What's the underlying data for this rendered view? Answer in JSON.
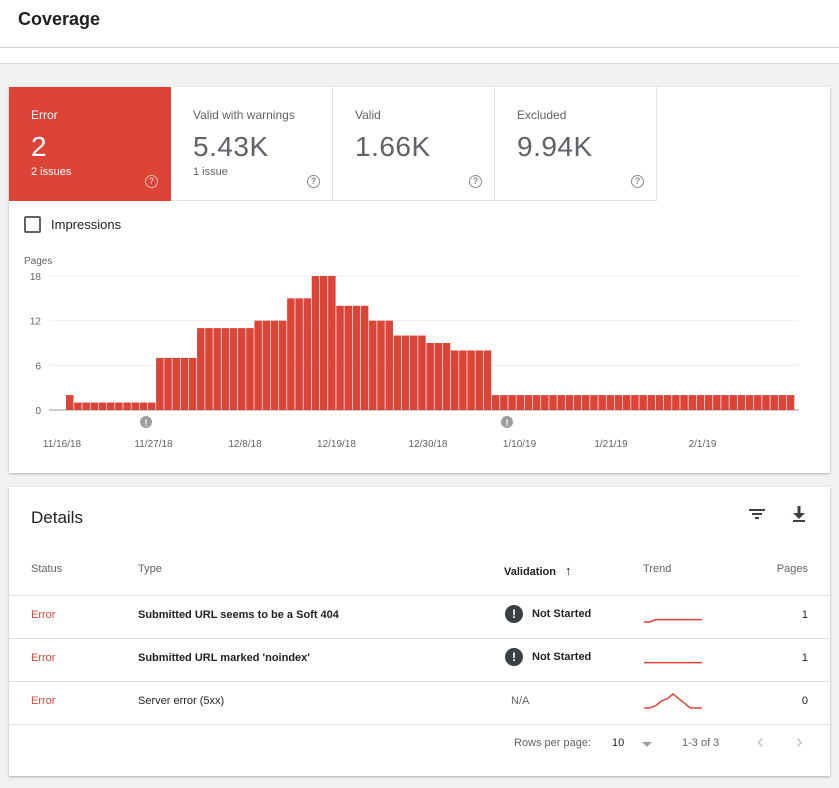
{
  "page": {
    "title": "Coverage"
  },
  "tiles": [
    {
      "label": "Error",
      "value": "2",
      "sub": "2 issues",
      "active": true
    },
    {
      "label": "Valid with warnings",
      "value": "5.43K",
      "sub": "1 issue",
      "active": false
    },
    {
      "label": "Valid",
      "value": "1.66K",
      "sub": "",
      "active": false
    },
    {
      "label": "Excluded",
      "value": "9.94K",
      "sub": "",
      "active": false
    }
  ],
  "help_glyph": "?",
  "impressions": {
    "label": "Impressions",
    "checked": false
  },
  "chart_data": {
    "type": "bar",
    "ylabel": "Pages",
    "yticks": [
      0,
      6,
      12,
      18
    ],
    "ylim": [
      0,
      18
    ],
    "xticks": [
      "11/16/18",
      "11/27/18",
      "12/8/18",
      "12/19/18",
      "12/30/18",
      "1/10/19",
      "1/21/19",
      "2/1/19"
    ],
    "values": [
      2,
      1,
      1,
      1,
      1,
      1,
      1,
      1,
      1,
      1,
      1,
      7,
      7,
      7,
      7,
      7,
      11,
      11,
      11,
      11,
      11,
      11,
      11,
      12,
      12,
      12,
      12,
      15,
      15,
      15,
      18,
      18,
      18,
      14,
      14,
      14,
      14,
      12,
      12,
      12,
      10,
      10,
      10,
      10,
      9,
      9,
      9,
      8,
      8,
      8,
      8,
      8,
      2,
      2,
      2,
      2,
      2,
      2,
      2,
      2,
      2,
      2,
      2,
      2,
      2,
      2,
      2,
      2,
      2,
      2,
      2,
      2,
      2,
      2,
      2,
      2,
      2,
      2,
      2,
      2,
      2,
      2,
      2,
      2,
      2,
      2,
      2,
      2,
      2
    ],
    "bar_color": "#db4437",
    "annotations": [
      "!",
      "!"
    ],
    "grid": true
  },
  "details": {
    "title": "Details",
    "filter_icon": "filter-icon",
    "download_icon": "download-icon",
    "columns": {
      "status": "Status",
      "type": "Type",
      "validation": "Validation",
      "sort_arrow": "↑",
      "trend": "Trend",
      "pages": "Pages"
    },
    "rows": [
      {
        "status": "Error",
        "type": "Submitted URL seems to be a Soft 404",
        "validation": "Not Started",
        "validation_icon": "!",
        "pages": "1",
        "trend": [
          0,
          0,
          1,
          1,
          1,
          1,
          1,
          1,
          1,
          1,
          1
        ]
      },
      {
        "status": "Error",
        "type": "Submitted URL marked 'noindex'",
        "validation": "Not Started",
        "validation_icon": "!",
        "pages": "1",
        "trend": [
          1,
          1,
          1,
          1,
          1,
          1,
          1,
          1,
          1,
          1,
          1
        ]
      },
      {
        "status": "Error",
        "type": "Server error (5xx)",
        "validation": "N/A",
        "validation_icon": "",
        "pages": "0",
        "trend": [
          0,
          0,
          1,
          3,
          4,
          6,
          4,
          2,
          0,
          0,
          0
        ]
      }
    ],
    "footer": {
      "rows_label": "Rows per page:",
      "rows_value": "10",
      "range": "1-3 of 3",
      "prev": "‹",
      "next": "›"
    }
  },
  "colors": {
    "accent": "#db4437"
  }
}
